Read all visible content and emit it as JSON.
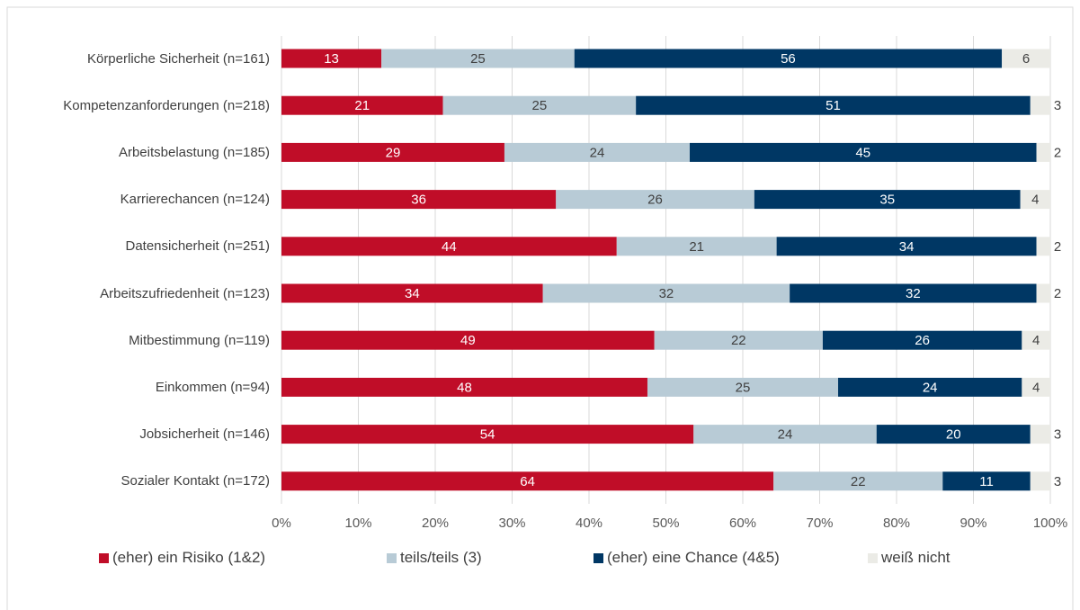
{
  "chart_data": {
    "type": "stacked_bar_horizontal",
    "categories": [
      "Körperliche Sicherheit (n=161)",
      "Kompetenzanforderungen (n=218)",
      "Arbeitsbelastung (n=185)",
      "Karrierechancen (n=124)",
      "Datensicherheit (n=251)",
      "Arbeitszufriedenheit (n=123)",
      "Mitbestimmung (n=119)",
      "Einkommen (n=94)",
      "Jobsicherheit (n=146)",
      "Sozialer Kontakt (n=172)"
    ],
    "series": [
      {
        "name": "(eher) ein Risiko (1&2)",
        "color": "#c00d28",
        "values": [
          13.0,
          21.0,
          29.0,
          35.7,
          43.6,
          34.0,
          48.5,
          47.6,
          53.6,
          64.0
        ],
        "value_labels": [
          "13",
          "21",
          "29",
          "36",
          "44",
          "34",
          "49",
          "48",
          "54",
          "64"
        ]
      },
      {
        "name": "teils/teils (3)",
        "color": "#b8cbd6",
        "values": [
          25.1,
          25.1,
          24.1,
          25.8,
          20.8,
          32.1,
          21.9,
          24.8,
          23.8,
          22.0
        ],
        "value_labels": [
          "25",
          "25",
          "24",
          "26",
          "21",
          "32",
          "22",
          "25",
          "24",
          "22"
        ]
      },
      {
        "name": "(eher) eine Chance (4&5)",
        "color": "#003764",
        "values": [
          55.6,
          51.3,
          45.1,
          34.6,
          33.8,
          32.1,
          25.9,
          23.9,
          20.0,
          11.4
        ],
        "value_labels": [
          "56",
          "51",
          "45",
          "35",
          "34",
          "32",
          "26",
          "24",
          "20",
          "11"
        ]
      },
      {
        "name": "weiß nicht",
        "color": "#ebebe6",
        "values": [
          6.3,
          2.6,
          1.8,
          3.9,
          1.8,
          1.8,
          3.7,
          3.7,
          2.6,
          2.6
        ],
        "value_labels": [
          "6",
          "3",
          "2",
          "4",
          "2",
          "2",
          "4",
          "4",
          "3",
          "3"
        ]
      }
    ],
    "xlim": [
      0,
      100
    ],
    "xticks": [
      {
        "value": 0,
        "label": "0%"
      },
      {
        "value": 10,
        "label": "10%"
      },
      {
        "value": 20,
        "label": "20%"
      },
      {
        "value": 30,
        "label": "30%"
      },
      {
        "value": 40,
        "label": "40%"
      },
      {
        "value": 50,
        "label": "50%"
      },
      {
        "value": 60,
        "label": "60%"
      },
      {
        "value": 70,
        "label": "70%"
      },
      {
        "value": 80,
        "label": "80%"
      },
      {
        "value": 90,
        "label": "90%"
      },
      {
        "value": 100,
        "label": "100%"
      }
    ],
    "grid": true,
    "legend": "bottom"
  }
}
